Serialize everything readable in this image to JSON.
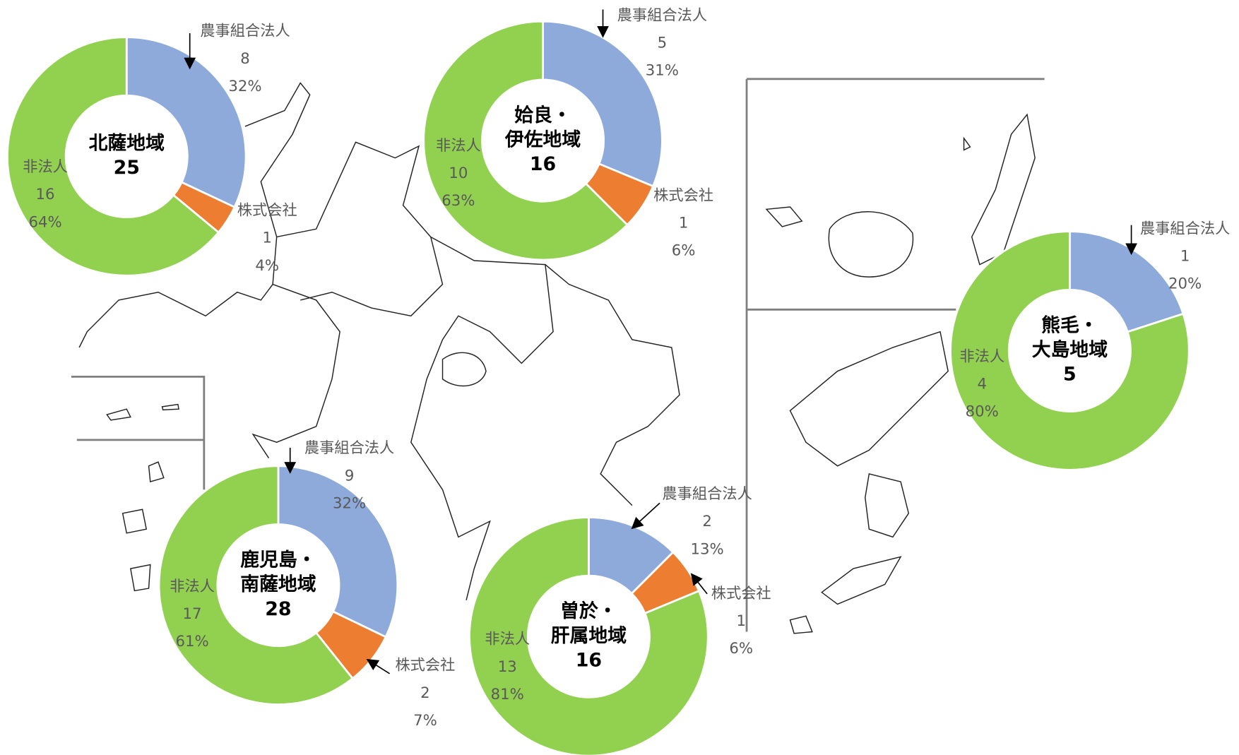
{
  "chart_data": [
    {
      "type": "pie",
      "title_lines": [
        "北薩地域"
      ],
      "total": 25,
      "categories": [
        "農事組合法人",
        "株式会社",
        "非法人"
      ],
      "values": [
        8,
        1,
        16
      ],
      "percent_labels": [
        "32%",
        "4%",
        "64%"
      ],
      "colors": [
        "#8eaadb",
        "#ed7d31",
        "#92d050"
      ]
    },
    {
      "type": "pie",
      "title_lines": [
        "姶良・",
        "伊佐地域"
      ],
      "total": 16,
      "categories": [
        "農事組合法人",
        "株式会社",
        "非法人"
      ],
      "values": [
        5,
        1,
        10
      ],
      "percent_labels": [
        "31%",
        "6%",
        "63%"
      ],
      "colors": [
        "#8eaadb",
        "#ed7d31",
        "#92d050"
      ]
    },
    {
      "type": "pie",
      "title_lines": [
        "熊毛・",
        "大島地域"
      ],
      "total": 5,
      "categories": [
        "農事組合法人",
        "非法人"
      ],
      "values": [
        1,
        4
      ],
      "percent_labels": [
        "20%",
        "80%"
      ],
      "colors": [
        "#8eaadb",
        "#92d050"
      ]
    },
    {
      "type": "pie",
      "title_lines": [
        "鹿児島・",
        "南薩地域"
      ],
      "total": 28,
      "categories": [
        "農事組合法人",
        "株式会社",
        "非法人"
      ],
      "values": [
        9,
        2,
        17
      ],
      "percent_labels": [
        "32%",
        "7%",
        "61%"
      ],
      "colors": [
        "#8eaadb",
        "#ed7d31",
        "#92d050"
      ]
    },
    {
      "type": "pie",
      "title_lines": [
        "曽於・",
        "肝属地域"
      ],
      "total": 16,
      "categories": [
        "農事組合法人",
        "株式会社",
        "非法人"
      ],
      "values": [
        2,
        1,
        13
      ],
      "percent_labels": [
        "13%",
        "6%",
        "81%"
      ],
      "colors": [
        "#8eaadb",
        "#ed7d31",
        "#92d050"
      ]
    }
  ]
}
